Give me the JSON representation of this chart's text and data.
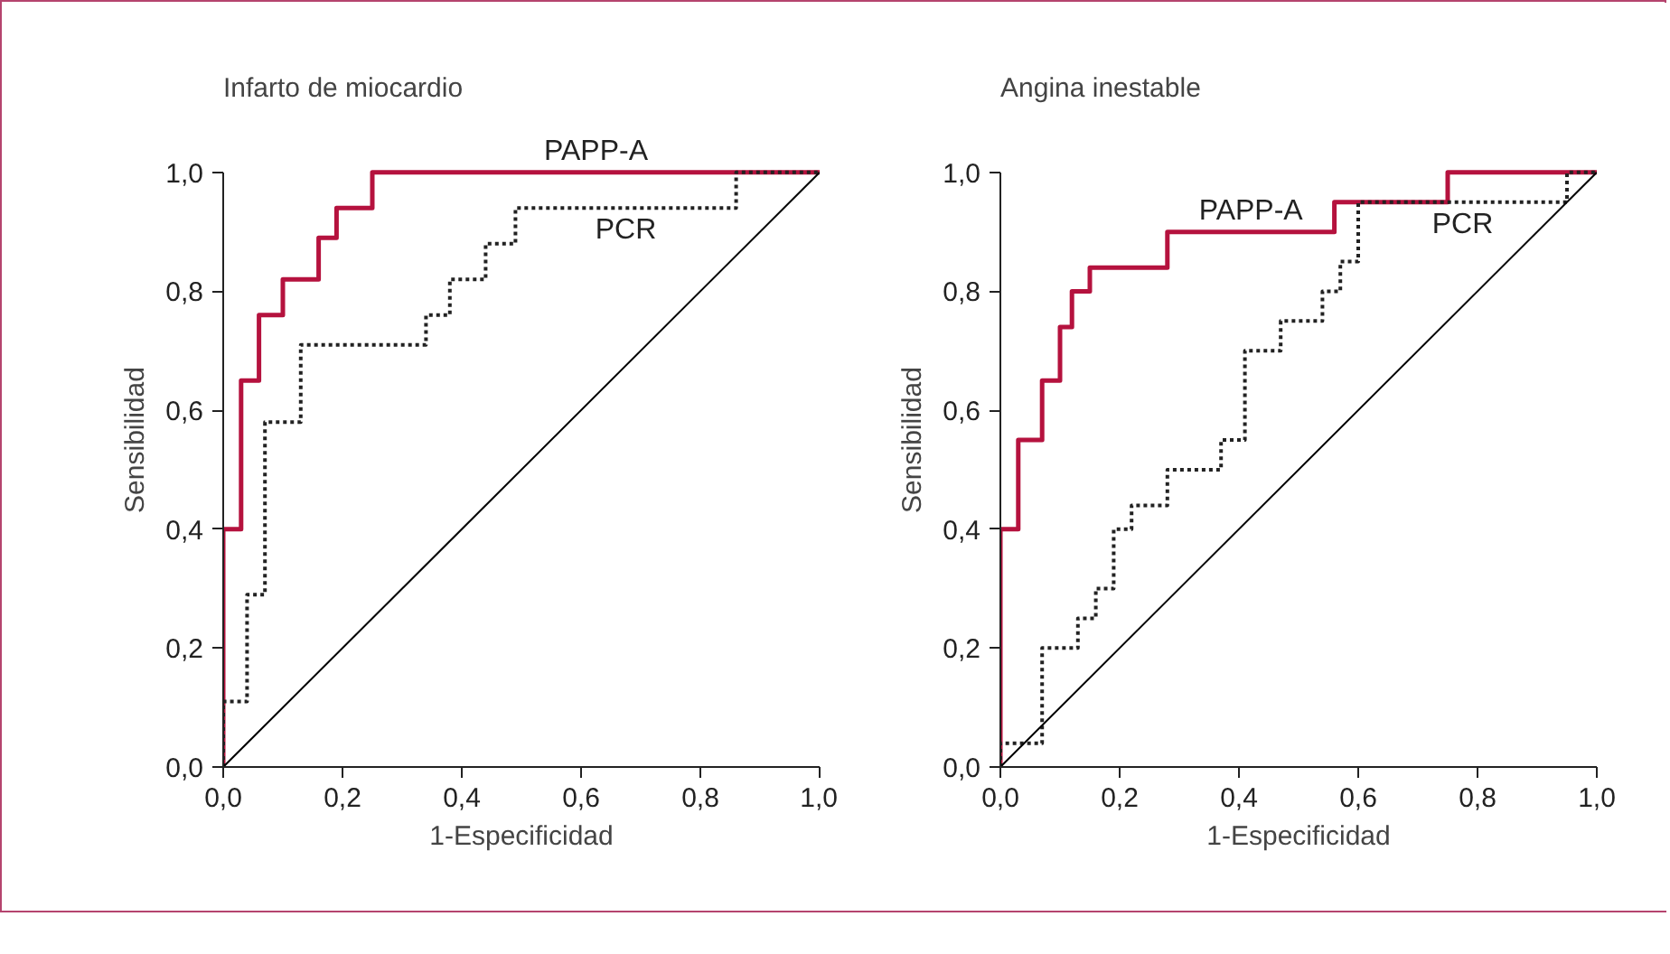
{
  "chart_data": [
    {
      "type": "line",
      "title": "Infarto de miocardio",
      "xlabel": "1-Especificidad",
      "ylabel": "Sensibilidad",
      "xlim": [
        0,
        1
      ],
      "ylim": [
        0,
        1
      ],
      "xticks": [
        {
          "value": 0,
          "label": "0,0"
        },
        {
          "value": 0.2,
          "label": "0,2"
        },
        {
          "value": 0.4,
          "label": "0,4"
        },
        {
          "value": 0.6,
          "label": "0,6"
        },
        {
          "value": 0.8,
          "label": "0,8"
        },
        {
          "value": 1,
          "label": "1,0"
        }
      ],
      "yticks": [
        {
          "value": 0,
          "label": "0,0"
        },
        {
          "value": 0.2,
          "label": "0,2"
        },
        {
          "value": 0.4,
          "label": "0,4"
        },
        {
          "value": 0.6,
          "label": "0,6"
        },
        {
          "value": 0.8,
          "label": "0,8"
        },
        {
          "value": 1,
          "label": "1,0"
        }
      ],
      "grid": false,
      "legend": false,
      "marker": "none",
      "series": [
        {
          "name": "PAPP-A",
          "color": "#b5123e",
          "line_style": "solid",
          "x": [
            0,
            0,
            0.03,
            0.03,
            0.06,
            0.06,
            0.1,
            0.1,
            0.16,
            0.16,
            0.19,
            0.19,
            0.25,
            0.25,
            1
          ],
          "values": [
            0,
            0.4,
            0.4,
            0.65,
            0.65,
            0.76,
            0.76,
            0.82,
            0.82,
            0.89,
            0.89,
            0.94,
            0.94,
            1,
            1
          ]
        },
        {
          "name": "PCR",
          "color": "#222222",
          "line_style": "dotted",
          "x": [
            0,
            0,
            0.04,
            0.04,
            0.07,
            0.07,
            0.13,
            0.13,
            0.34,
            0.34,
            0.38,
            0.38,
            0.44,
            0.44,
            0.49,
            0.49,
            0.86,
            0.86,
            1
          ],
          "values": [
            0,
            0.11,
            0.11,
            0.29,
            0.29,
            0.58,
            0.58,
            0.71,
            0.71,
            0.76,
            0.76,
            0.82,
            0.82,
            0.88,
            0.88,
            0.94,
            0.94,
            1,
            1
          ]
        },
        {
          "color": "#000000",
          "line_style": "solid",
          "x": [
            0,
            1
          ],
          "values": [
            0,
            1
          ]
        }
      ]
    },
    {
      "type": "line",
      "title": "Angina inestable",
      "xlabel": "1-Especificidad",
      "ylabel": "Sensibilidad",
      "xlim": [
        0,
        1
      ],
      "ylim": [
        0,
        1
      ],
      "xticks": [
        {
          "value": 0,
          "label": "0,0"
        },
        {
          "value": 0.2,
          "label": "0,2"
        },
        {
          "value": 0.4,
          "label": "0,4"
        },
        {
          "value": 0.6,
          "label": "0,6"
        },
        {
          "value": 0.8,
          "label": "0,8"
        },
        {
          "value": 1,
          "label": "1,0"
        }
      ],
      "yticks": [
        {
          "value": 0,
          "label": "0,0"
        },
        {
          "value": 0.2,
          "label": "0,2"
        },
        {
          "value": 0.4,
          "label": "0,4"
        },
        {
          "value": 0.6,
          "label": "0,6"
        },
        {
          "value": 0.8,
          "label": "0,8"
        },
        {
          "value": 1,
          "label": "1,0"
        }
      ],
      "grid": false,
      "legend": false,
      "marker": "none",
      "series": [
        {
          "name": "PAPP-A",
          "color": "#b5123e",
          "line_style": "solid",
          "x": [
            0,
            0,
            0.03,
            0.03,
            0.07,
            0.07,
            0.1,
            0.1,
            0.12,
            0.12,
            0.15,
            0.15,
            0.28,
            0.28,
            0.56,
            0.56,
            0.75,
            0.75,
            1
          ],
          "values": [
            0,
            0.4,
            0.4,
            0.55,
            0.55,
            0.65,
            0.65,
            0.74,
            0.74,
            0.8,
            0.8,
            0.84,
            0.84,
            0.9,
            0.9,
            0.95,
            0.95,
            1,
            1
          ]
        },
        {
          "name": "PCR",
          "color": "#222222",
          "line_style": "dotted",
          "x": [
            0,
            0,
            0.07,
            0.07,
            0.13,
            0.13,
            0.16,
            0.16,
            0.19,
            0.19,
            0.22,
            0.22,
            0.28,
            0.28,
            0.37,
            0.37,
            0.41,
            0.41,
            0.47,
            0.47,
            0.54,
            0.54,
            0.57,
            0.57,
            0.6,
            0.6,
            0.95,
            0.95,
            1
          ],
          "values": [
            0,
            0.04,
            0.04,
            0.2,
            0.2,
            0.25,
            0.25,
            0.3,
            0.3,
            0.4,
            0.4,
            0.44,
            0.44,
            0.5,
            0.5,
            0.55,
            0.55,
            0.7,
            0.7,
            0.75,
            0.75,
            0.8,
            0.8,
            0.85,
            0.85,
            0.95,
            0.95,
            1,
            1
          ]
        },
        {
          "color": "#000000",
          "line_style": "solid",
          "x": [
            0,
            1
          ],
          "values": [
            0,
            1
          ]
        }
      ]
    }
  ]
}
